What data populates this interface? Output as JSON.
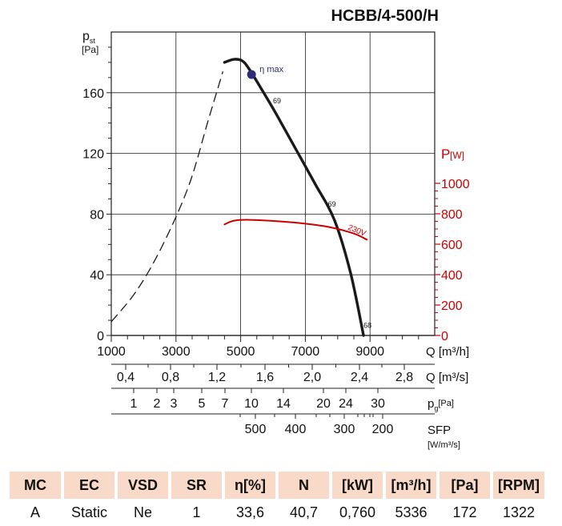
{
  "chart_data": {
    "type": "line",
    "title": "HCBB/4-500/H",
    "xlabel": "Q [m³/h]",
    "ylabel_main": "p",
    "ylabel_sub": "st",
    "ylabel_unit": "[Pa]",
    "xlim": [
      1000,
      11000
    ],
    "ylim": [
      0,
      200
    ],
    "x_ticks": [
      1000,
      3000,
      5000,
      7000,
      9000
    ],
    "y_ticks": [
      0,
      40,
      80,
      120,
      160
    ],
    "power_axis": {
      "label_main": "P",
      "label_unit": "[W]",
      "range": [
        0,
        1000
      ],
      "ticks": [
        0,
        200,
        400,
        600,
        800,
        1000
      ],
      "color": "#cc0000"
    },
    "series": [
      {
        "name": "static pressure",
        "style": "solid",
        "color": "#1a1a1a",
        "x": [
          4500,
          4800,
          5050,
          5250,
          5600,
          6100,
          6700,
          7300,
          7900,
          8400,
          8800
        ],
        "y": [
          180,
          182,
          181,
          176,
          164,
          146,
          123,
          100,
          76,
          41,
          0
        ]
      },
      {
        "name": "static pressure (unstable range)",
        "style": "dashed",
        "color": "#1a1a1a",
        "x": [
          1000,
          1800,
          2600,
          3400,
          4000,
          4450
        ],
        "y": [
          9,
          30,
          60,
          99,
          142,
          174
        ]
      },
      {
        "name": "230V",
        "axis": "power",
        "style": "solid",
        "color": "#cc0000",
        "x": [
          4500,
          4800,
          5300,
          6200,
          7000,
          7800,
          8500,
          8900
        ],
        "y": [
          730,
          755,
          760,
          750,
          735,
          710,
          670,
          630
        ]
      }
    ],
    "eta_max": {
      "label": "η max",
      "x": 5336,
      "y": 172,
      "color": "#2b2d7a"
    },
    "annotations": [
      {
        "text": "69",
        "x": 6000,
        "y": 153
      },
      {
        "text": "69",
        "x": 7700,
        "y": 85
      },
      {
        "text": "68",
        "x": 8800,
        "y": 5
      },
      {
        "text": "230V",
        "x": 8300,
        "y": 70,
        "color": "#cc0000"
      }
    ],
    "secondary_scales": [
      {
        "label": "Q [m³/s]",
        "ticks": [
          "0,4",
          "0,8",
          "1,2",
          "1,6",
          "2,0",
          "2,4",
          "2,8"
        ]
      },
      {
        "label_main": "p",
        "label_sub": "g",
        "label_unit": "[Pa]",
        "ticks": [
          "1",
          "2",
          "3",
          "5",
          "7",
          "10",
          "14",
          "20",
          "24",
          "30"
        ]
      },
      {
        "label": "SFP",
        "unit": "[W/m³/s]",
        "ticks": [
          "500",
          "400",
          "300",
          "200"
        ]
      }
    ]
  },
  "table": {
    "headers": [
      "MC",
      "EC",
      "VSD",
      "SR",
      "η[%]",
      "N",
      "[kW]",
      "[m³/h]",
      "[Pa]",
      "[RPM]"
    ],
    "values": [
      "A",
      "Static",
      "Ne",
      "1",
      "33,6",
      "40,7",
      "0,760",
      "5336",
      "172",
      "1322"
    ]
  }
}
